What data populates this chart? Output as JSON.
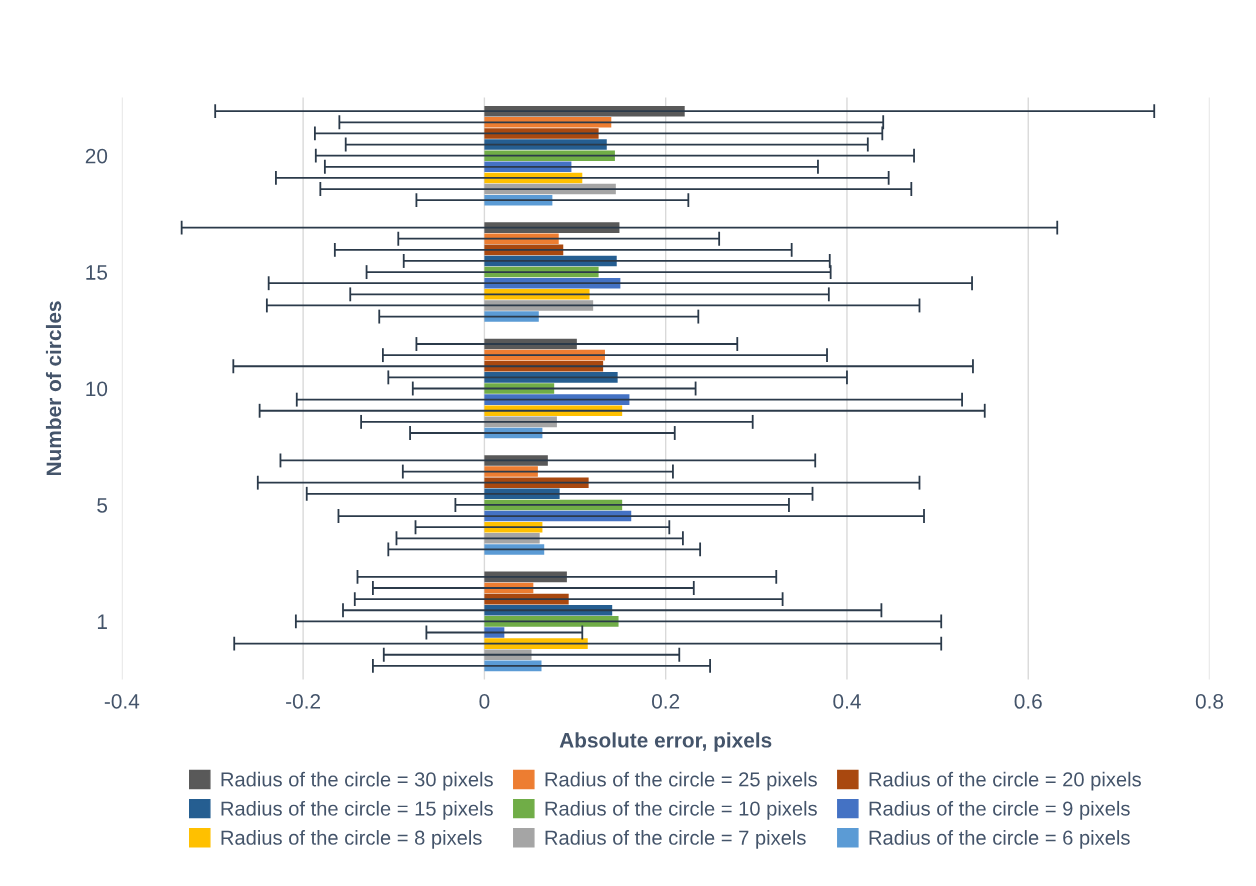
{
  "chart_data": {
    "type": "bar",
    "orientation": "horizontal",
    "xlabel": "Absolute error, pixels",
    "ylabel": "Number of circles",
    "categories": [
      "20",
      "15",
      "10",
      "5",
      "1"
    ],
    "xlim": [
      -0.4,
      0.8
    ],
    "xticks": [
      -0.4,
      -0.2,
      0,
      0.2,
      0.4,
      0.6,
      0.8
    ],
    "grid": "x",
    "legend": "bottom",
    "series": [
      {
        "name": "Radius of the circle = 30 pixels",
        "color": "#595959",
        "values": [
          0.221,
          0.149,
          0.102,
          0.07,
          0.091
        ],
        "errors": [
          0.518,
          0.483,
          0.177,
          0.295,
          0.231
        ]
      },
      {
        "name": "Radius of the circle = 25 pixels",
        "color": "#ed7d31",
        "values": [
          0.14,
          0.082,
          0.133,
          0.059,
          0.054
        ],
        "errors": [
          0.3,
          0.177,
          0.245,
          0.149,
          0.177
        ]
      },
      {
        "name": "Radius of the circle = 20 pixels",
        "color": "#a9480f",
        "values": [
          0.126,
          0.087,
          0.131,
          0.115,
          0.093
        ],
        "errors": [
          0.313,
          0.252,
          0.408,
          0.365,
          0.236
        ]
      },
      {
        "name": "Radius of the circle = 15 pixels",
        "color": "#255e91",
        "values": [
          0.135,
          0.146,
          0.147,
          0.083,
          0.141
        ],
        "errors": [
          0.288,
          0.235,
          0.253,
          0.279,
          0.297
        ]
      },
      {
        "name": "Radius of the circle = 10 pixels",
        "color": "#70ad47",
        "values": [
          0.144,
          0.126,
          0.077,
          0.152,
          0.148
        ],
        "errors": [
          0.33,
          0.256,
          0.156,
          0.184,
          0.356
        ]
      },
      {
        "name": "Radius of the circle = 9 pixels",
        "color": "#4472c4",
        "values": [
          0.096,
          0.15,
          0.16,
          0.162,
          0.022
        ],
        "errors": [
          0.272,
          0.388,
          0.367,
          0.323,
          0.086
        ]
      },
      {
        "name": "Radius of the circle = 8 pixels",
        "color": "#ffc000",
        "values": [
          0.108,
          0.116,
          0.152,
          0.064,
          0.114
        ],
        "errors": [
          0.338,
          0.264,
          0.4,
          0.14,
          0.39
        ]
      },
      {
        "name": "Radius of the circle = 7 pixels",
        "color": "#a5a5a5",
        "values": [
          0.145,
          0.12,
          0.08,
          0.061,
          0.052
        ],
        "errors": [
          0.326,
          0.36,
          0.216,
          0.158,
          0.163
        ]
      },
      {
        "name": "Radius of the circle = 6 pixels",
        "color": "#5b9bd5",
        "values": [
          0.075,
          0.06,
          0.064,
          0.066,
          0.063
        ],
        "errors": [
          0.15,
          0.176,
          0.146,
          0.172,
          0.186
        ]
      }
    ]
  }
}
